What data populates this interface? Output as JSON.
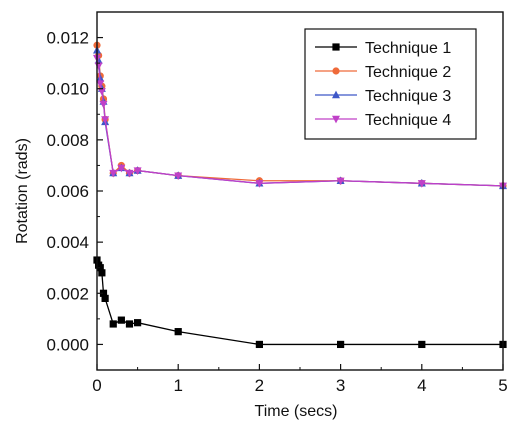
{
  "chart_data": {
    "type": "line",
    "title": "",
    "xlabel": "Time (secs)",
    "ylabel": "Rotation (rads)",
    "xlim": [
      0,
      5
    ],
    "ylim": [
      -0.001,
      0.013
    ],
    "x_ticks": [
      "0",
      "1",
      "2",
      "3",
      "4",
      "5"
    ],
    "x_tick_values": [
      0,
      1,
      2,
      3,
      4,
      5
    ],
    "y_ticks": [
      "0.000",
      "0.002",
      "0.004",
      "0.006",
      "0.008",
      "0.010",
      "0.012"
    ],
    "y_tick_values": [
      0,
      0.002,
      0.004,
      0.006,
      0.008,
      0.01,
      0.012
    ],
    "grid": false,
    "legend_position": "top-right",
    "series": [
      {
        "name": "Technique 1",
        "color": "#000000",
        "marker": "square",
        "points": [
          [
            0.0,
            0.0033
          ],
          [
            0.02,
            0.0031
          ],
          [
            0.04,
            0.003
          ],
          [
            0.06,
            0.0028
          ],
          [
            0.08,
            0.002
          ],
          [
            0.1,
            0.0018
          ],
          [
            0.2,
            0.0008
          ],
          [
            0.3,
            0.00095
          ],
          [
            0.4,
            0.0008
          ],
          [
            0.5,
            0.00085
          ],
          [
            1.0,
            0.0005
          ],
          [
            2.0,
            0.0
          ],
          [
            3.0,
            0.0
          ],
          [
            4.0,
            0.0
          ],
          [
            5.0,
            0.0
          ]
        ]
      },
      {
        "name": "Technique 2",
        "color": "#ef6a3a",
        "marker": "circle",
        "points": [
          [
            0.0,
            0.0117
          ],
          [
            0.02,
            0.0113
          ],
          [
            0.04,
            0.0105
          ],
          [
            0.06,
            0.0101
          ],
          [
            0.08,
            0.0096
          ],
          [
            0.1,
            0.0088
          ],
          [
            0.2,
            0.0067
          ],
          [
            0.3,
            0.007
          ],
          [
            0.4,
            0.0067
          ],
          [
            0.5,
            0.0068
          ],
          [
            1.0,
            0.0066
          ],
          [
            2.0,
            0.0064
          ],
          [
            3.0,
            0.0064
          ],
          [
            4.0,
            0.0063
          ],
          [
            5.0,
            0.0062
          ]
        ]
      },
      {
        "name": "Technique 3",
        "color": "#3e57c8",
        "marker": "triangle-up",
        "points": [
          [
            0.0,
            0.0115
          ],
          [
            0.02,
            0.0111
          ],
          [
            0.04,
            0.0104
          ],
          [
            0.06,
            0.01
          ],
          [
            0.08,
            0.0095
          ],
          [
            0.1,
            0.0087
          ],
          [
            0.2,
            0.0067
          ],
          [
            0.3,
            0.0069
          ],
          [
            0.4,
            0.0067
          ],
          [
            0.5,
            0.0068
          ],
          [
            1.0,
            0.0066
          ],
          [
            2.0,
            0.0063
          ],
          [
            3.0,
            0.0064
          ],
          [
            4.0,
            0.0063
          ],
          [
            5.0,
            0.0062
          ]
        ]
      },
      {
        "name": "Technique 4",
        "color": "#c040c8",
        "marker": "triangle-down",
        "points": [
          [
            0.0,
            0.0112
          ],
          [
            0.02,
            0.0109
          ],
          [
            0.04,
            0.0102
          ],
          [
            0.06,
            0.0099
          ],
          [
            0.08,
            0.0094
          ],
          [
            0.1,
            0.0088
          ],
          [
            0.2,
            0.0067
          ],
          [
            0.3,
            0.0069
          ],
          [
            0.4,
            0.0067
          ],
          [
            0.5,
            0.0068
          ],
          [
            1.0,
            0.0066
          ],
          [
            2.0,
            0.0063
          ],
          [
            3.0,
            0.0064
          ],
          [
            4.0,
            0.0063
          ],
          [
            5.0,
            0.0062
          ]
        ]
      }
    ]
  }
}
